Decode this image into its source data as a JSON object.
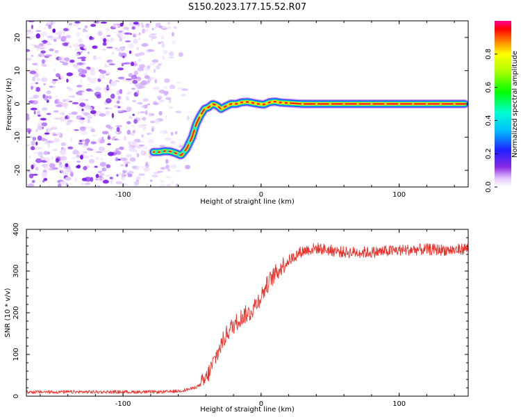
{
  "title": "S150.2023.177.15.52.R07",
  "colors": {
    "snr_line": "#e8322b",
    "axes": "#000000",
    "colormap_name": "gist_ncar-like (white-purple-blue-cyan-green-yellow-red-magenta)"
  },
  "chart_data": [
    {
      "type": "heatmap",
      "xlabel": "Height of straight line (km)",
      "ylabel": "Frequency (Hz)",
      "xlim": [
        -170,
        150
      ],
      "ylim": [
        -25,
        25
      ],
      "xticks": [
        -100,
        0,
        100
      ],
      "xtick_labels": [
        "-100",
        "0",
        "100"
      ],
      "yticks": [
        -20,
        -10,
        0,
        10,
        20
      ],
      "ytick_labels": [
        "-20",
        "-10",
        "0",
        "10",
        "20"
      ],
      "noise_region_x": [
        -170,
        -60
      ],
      "ridge": {
        "x": [
          -78,
          -74,
          -70,
          -66,
          -62,
          -58,
          -54,
          -50,
          -47,
          -44,
          -41,
          -38,
          -35,
          -32,
          -29,
          -26,
          -22,
          -18,
          -14,
          -10,
          -6,
          -2,
          2,
          6,
          10,
          14,
          30,
          50,
          70,
          90,
          110,
          130,
          148
        ],
        "y": [
          -14.5,
          -14.5,
          -14.2,
          -14.3,
          -14.8,
          -15.5,
          -13.5,
          -10,
          -6,
          -3.5,
          -1.5,
          -1,
          0,
          -0.5,
          -1.5,
          -0.8,
          0,
          0,
          0.5,
          0.6,
          0.3,
          0,
          -0.2,
          0.5,
          0.7,
          0.4,
          0,
          0,
          0,
          0,
          0,
          0,
          0
        ]
      },
      "colorbar": {
        "label": "Normalized spectral amplitude",
        "range": [
          0,
          1
        ],
        "ticks": [
          0.0,
          0.2,
          0.4,
          0.6,
          0.8
        ],
        "tick_labels": [
          "0.0",
          "0.2",
          "0.4",
          "0.6",
          "0.8"
        ]
      }
    },
    {
      "type": "line",
      "xlabel": "Height of straight line (km)",
      "ylabel": "SNR (10 * v/v)",
      "xlim": [
        -170,
        150
      ],
      "ylim": [
        0,
        400
      ],
      "xticks": [
        -100,
        0,
        100
      ],
      "xtick_labels": [
        "-100",
        "0",
        "100"
      ],
      "yticks": [
        0,
        100,
        200,
        300,
        400
      ],
      "ytick_labels": [
        "0",
        "100",
        "200",
        "300",
        "400"
      ],
      "series": [
        {
          "x": [
            -170,
            -150,
            -130,
            -110,
            -90,
            -70,
            -60,
            -50,
            -45,
            -40,
            -36,
            -32,
            -28,
            -24,
            -20,
            -16,
            -12,
            -8,
            -4,
            0,
            4,
            8,
            12,
            16,
            20,
            24,
            28,
            32,
            36,
            40,
            50,
            60,
            80,
            100,
            120,
            140,
            150
          ],
          "y": [
            10,
            10,
            10,
            10,
            10,
            10,
            12,
            18,
            25,
            40,
            70,
            100,
            130,
            155,
            170,
            185,
            195,
            200,
            220,
            240,
            265,
            285,
            300,
            315,
            325,
            335,
            345,
            350,
            352,
            355,
            350,
            345,
            345,
            350,
            352,
            350,
            355
          ]
        }
      ]
    }
  ]
}
